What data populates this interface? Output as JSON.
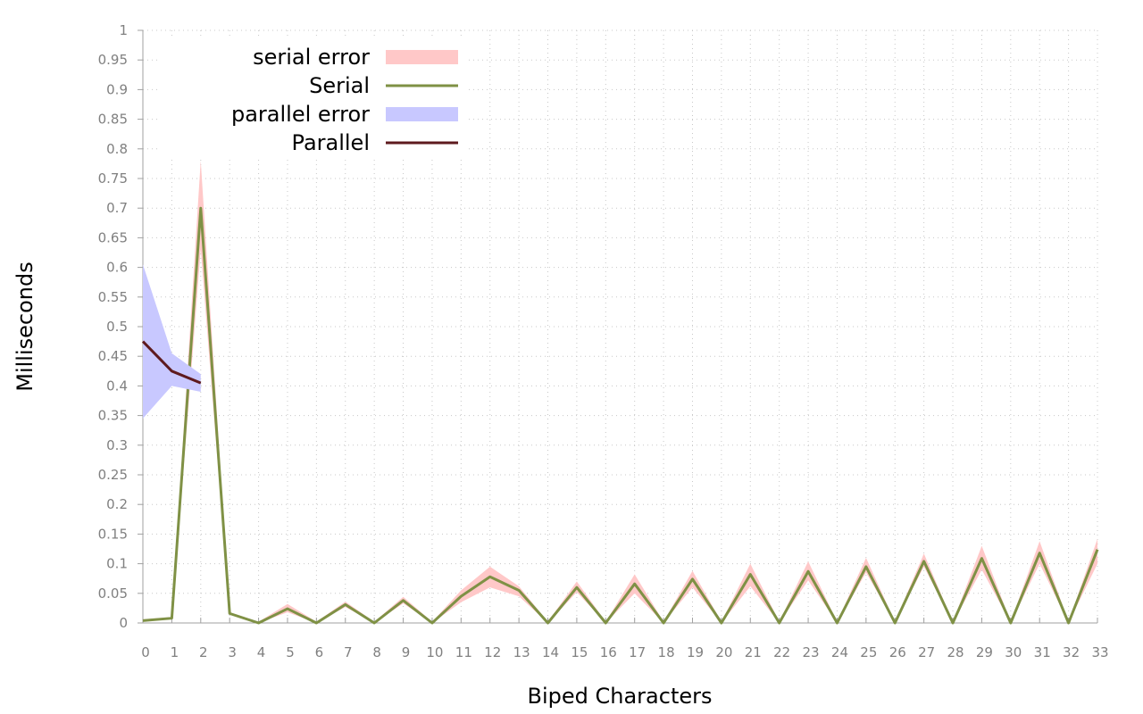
{
  "chart_data": {
    "type": "line",
    "xlabel": "Biped Characters",
    "ylabel": "Milliseconds",
    "xlim": [
      0,
      33
    ],
    "ylim": [
      0,
      1
    ],
    "x_ticks": [
      "0",
      "1",
      "2",
      "3",
      "4",
      "5",
      "6",
      "7",
      "8",
      "9",
      "10",
      "11",
      "12",
      "13",
      "14",
      "15",
      "16",
      "17",
      "18",
      "19",
      "20",
      "21",
      "22",
      "23",
      "24",
      "25",
      "26",
      "27",
      "28",
      "29",
      "30",
      "31",
      "32",
      "33"
    ],
    "y_ticks": [
      "0",
      "0.05",
      "0.1",
      "0.15",
      "0.2",
      "0.25",
      "0.3",
      "0.35",
      "0.4",
      "0.45",
      "0.5",
      "0.55",
      "0.6",
      "0.65",
      "0.7",
      "0.75",
      "0.8",
      "0.85",
      "0.9",
      "0.95",
      "1"
    ],
    "grid": true,
    "legend": {
      "placement": "top-left"
    },
    "series": [
      {
        "name": "serial error",
        "kind": "band",
        "color": "#ffc8c8",
        "x": [
          0,
          1,
          2,
          3,
          4,
          5,
          6,
          7,
          8,
          9,
          10,
          11,
          12,
          13,
          14,
          15,
          16,
          17,
          18,
          19,
          20,
          21,
          22,
          23,
          24,
          25,
          26,
          27,
          28,
          29,
          30,
          31,
          32,
          33
        ],
        "lower": [
          0.003,
          0.006,
          0.63,
          0.015,
          0,
          0.018,
          0,
          0.027,
          0,
          0.033,
          0,
          0.035,
          0.06,
          0.045,
          0,
          0.052,
          0,
          0.05,
          0,
          0.06,
          0,
          0.062,
          0,
          0.072,
          0,
          0.085,
          0,
          0.095,
          0,
          0.09,
          0,
          0.1,
          0,
          0.1
        ],
        "upper": [
          0.006,
          0.01,
          0.78,
          0.018,
          0.002,
          0.032,
          0.002,
          0.036,
          0.002,
          0.044,
          0.002,
          0.055,
          0.095,
          0.062,
          0.002,
          0.07,
          0.002,
          0.082,
          0.002,
          0.088,
          0.002,
          0.1,
          0.002,
          0.104,
          0.002,
          0.11,
          0.002,
          0.117,
          0.002,
          0.13,
          0.002,
          0.138,
          0.002,
          0.142
        ]
      },
      {
        "name": "Serial",
        "kind": "line",
        "color": "#7f9145",
        "x": [
          0,
          1,
          2,
          3,
          4,
          5,
          6,
          7,
          8,
          9,
          10,
          11,
          12,
          13,
          14,
          15,
          16,
          17,
          18,
          19,
          20,
          21,
          22,
          23,
          24,
          25,
          26,
          27,
          28,
          29,
          30,
          31,
          32,
          33
        ],
        "values": [
          0.004,
          0.008,
          0.7,
          0.016,
          0,
          0.024,
          0,
          0.031,
          0,
          0.038,
          0,
          0.045,
          0.078,
          0.055,
          0,
          0.06,
          0,
          0.066,
          0,
          0.074,
          0,
          0.082,
          0,
          0.087,
          0,
          0.095,
          0,
          0.104,
          0,
          0.109,
          0,
          0.118,
          0,
          0.124
        ]
      },
      {
        "name": "parallel error",
        "kind": "band",
        "color": "#c8c8ff",
        "x": [
          0,
          1,
          2
        ],
        "lower": [
          0.345,
          0.4,
          0.39
        ],
        "upper": [
          0.605,
          0.455,
          0.42
        ]
      },
      {
        "name": "Parallel",
        "kind": "line",
        "color": "#5e1a1e",
        "x": [
          0,
          1,
          2
        ],
        "values": [
          0.475,
          0.425,
          0.405
        ]
      }
    ]
  }
}
